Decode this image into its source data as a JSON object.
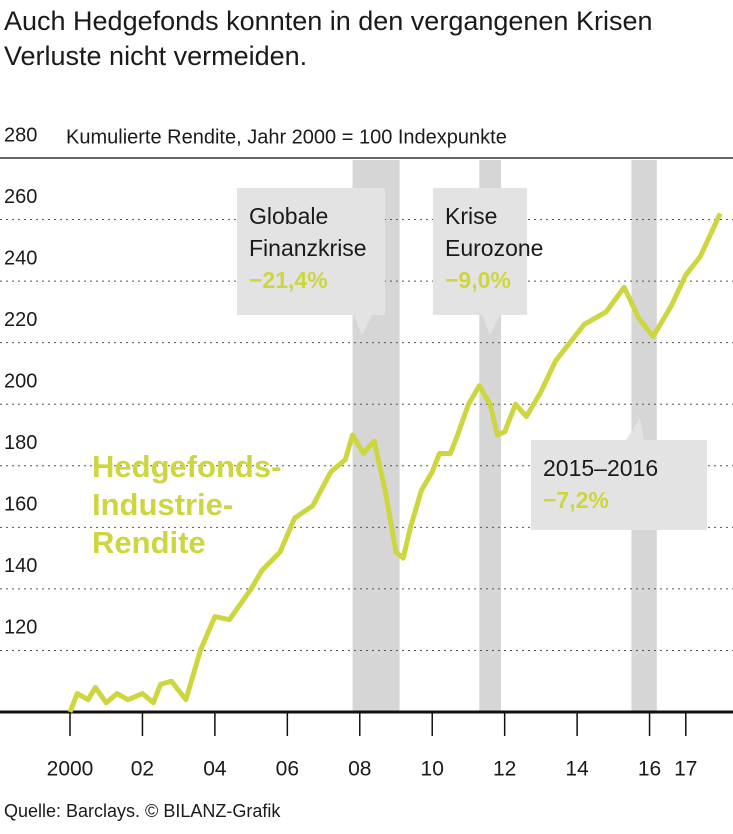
{
  "chart_data": {
    "type": "line",
    "title": "Auch Hedgefonds konnten in den vergangenen Krisen Verluste nicht vermeiden.",
    "y_label": "Kumulierte Rendite, Jahr 2000 = 100 Indexpunkte",
    "source": "Quelle: Barclays. © BILANZ-Grafik",
    "xlim": [
      2000,
      2018
    ],
    "ylim": [
      100,
      280
    ],
    "yticks": [
      120,
      140,
      160,
      180,
      200,
      220,
      240,
      260,
      280
    ],
    "xticks": [
      2000,
      {
        "value": 2002,
        "label": "02"
      },
      {
        "value": 2004,
        "label": "04"
      },
      {
        "value": 2006,
        "label": "06"
      },
      {
        "value": 2008,
        "label": "08"
      },
      {
        "value": 2010,
        "label": "10"
      },
      {
        "value": 2012,
        "label": "12"
      },
      {
        "value": 2014,
        "label": "14"
      },
      {
        "value": 2016,
        "label": "16"
      },
      {
        "value": 2017,
        "label": "17"
      }
    ],
    "grid": true,
    "shaded_periods": [
      [
        2007.8,
        2009.1
      ],
      [
        2011.3,
        2011.9
      ],
      [
        2015.5,
        2016.2
      ]
    ],
    "annotations": [
      {
        "lines": [
          "Globale",
          "Finanzkrise"
        ],
        "value": "−21,4%"
      },
      {
        "lines": [
          "Krise",
          "Eurozone"
        ],
        "value": "−9,0%"
      },
      {
        "lines": [
          "2015–2016"
        ],
        "value": "−7,2%"
      }
    ],
    "x": [
      2000,
      2000.2,
      2000.5,
      2000.7,
      2001,
      2001.3,
      2001.6,
      2002,
      2002.3,
      2002.5,
      2002.8,
      2003,
      2003.2,
      2003.6,
      2004,
      2004.4,
      2005,
      2005.3,
      2005.8,
      2006.2,
      2006.7,
      2007.2,
      2007.6,
      2007.8,
      2008.1,
      2008.4,
      2008.7,
      2009,
      2009.2,
      2009.4,
      2009.7,
      2010,
      2010.2,
      2010.5,
      2010.7,
      2011,
      2011.3,
      2011.6,
      2011.8,
      2012,
      2012.3,
      2012.6,
      2013,
      2013.4,
      2013.8,
      2014.2,
      2014.8,
      2015.3,
      2015.7,
      2016.1,
      2016.6,
      2017,
      2017.4,
      2017.95
    ],
    "series": [
      {
        "name": "Hedgefonds-Industrie-Rendite",
        "color": "#cdd63f",
        "values": [
          100,
          106,
          104,
          108,
          103,
          106,
          104,
          106,
          103,
          109,
          110,
          107,
          104,
          120,
          131,
          130,
          140,
          146,
          152,
          163,
          167,
          178,
          182,
          190,
          184,
          188,
          172,
          152,
          150,
          160,
          172,
          178,
          184,
          184,
          190,
          200,
          206,
          200,
          190,
          191,
          200,
          196,
          204,
          214,
          220,
          226,
          230,
          238,
          228,
          222,
          232,
          242,
          248,
          262
        ]
      }
    ]
  }
}
